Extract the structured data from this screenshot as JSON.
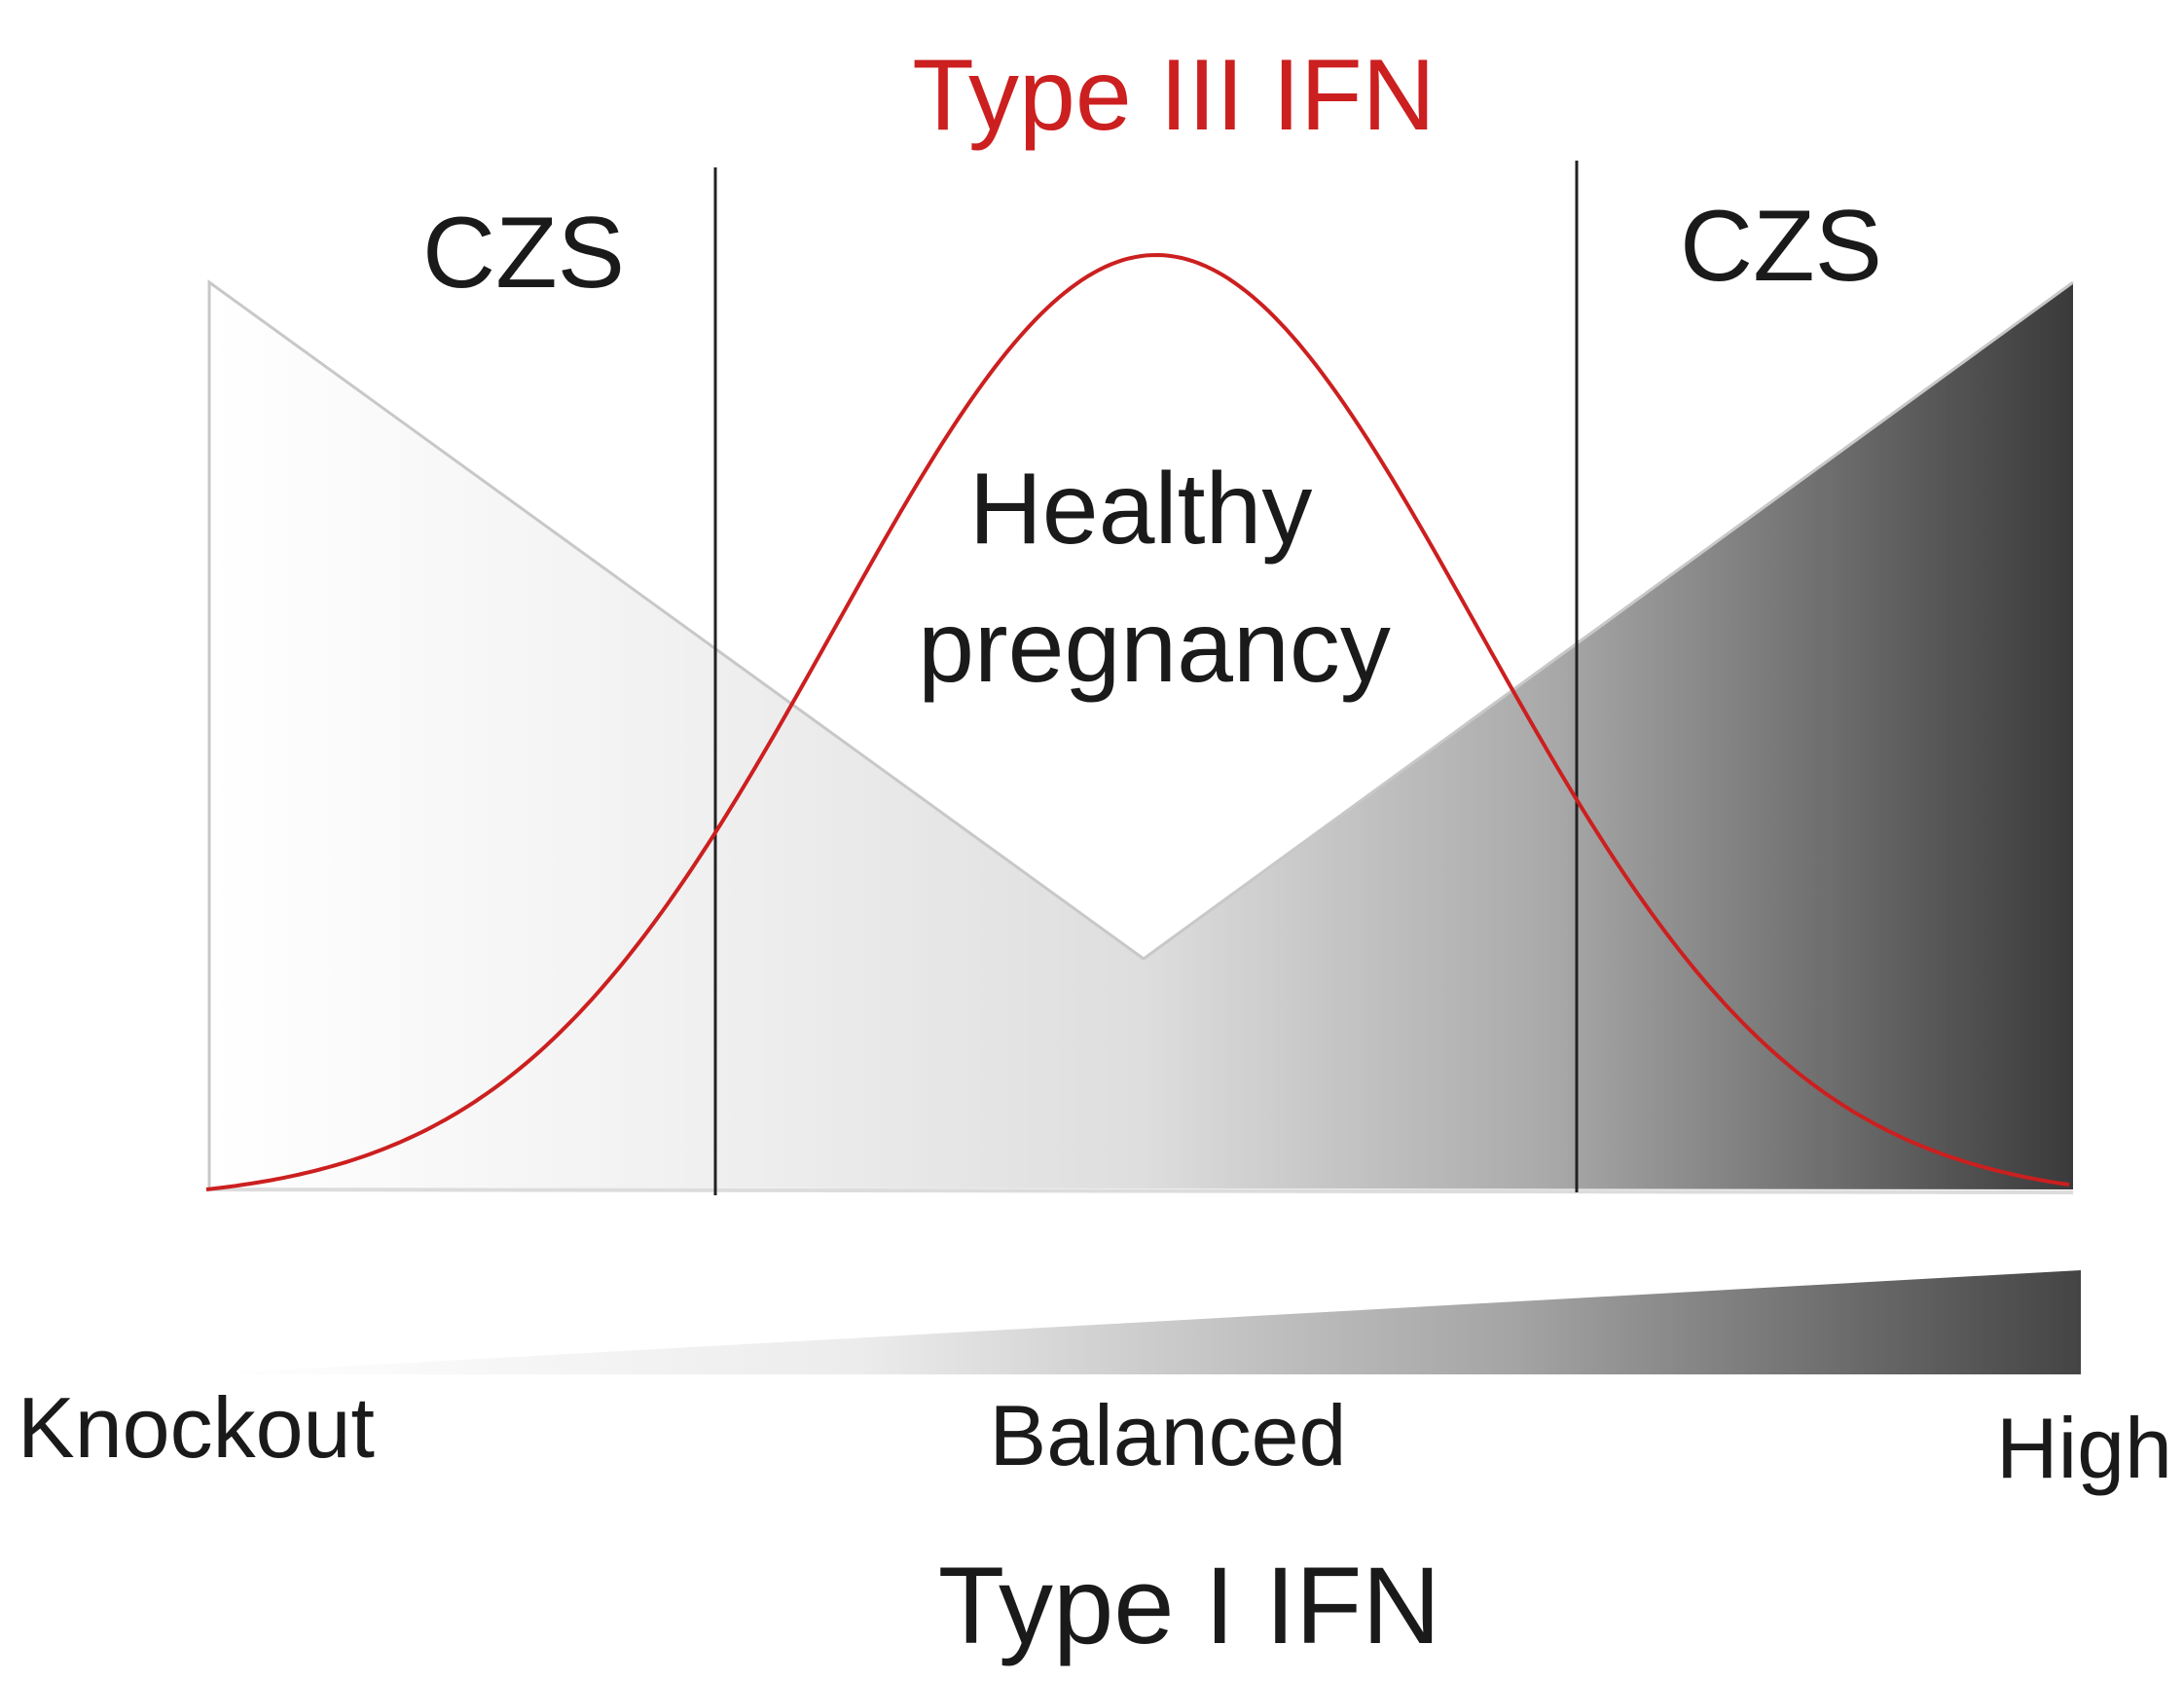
{
  "title": "Type III IFN",
  "zones": {
    "left_label": "CZS",
    "center_label_line1": "Healthy",
    "center_label_line2": "pregnancy",
    "right_label": "CZS"
  },
  "axis": {
    "start_label": "Knockout",
    "middle_label": "Balanced",
    "end_label": "High",
    "title": "Type I IFN"
  },
  "colors": {
    "type3_curve": "#cc1f1f",
    "title": "#cc1f1f",
    "text": "#1a1a1a",
    "divider": "#222222",
    "gradient_light": "#ffffff",
    "gradient_dark": "#3a3a3a",
    "upper_triangle_fill": "#e6e6e6"
  }
}
